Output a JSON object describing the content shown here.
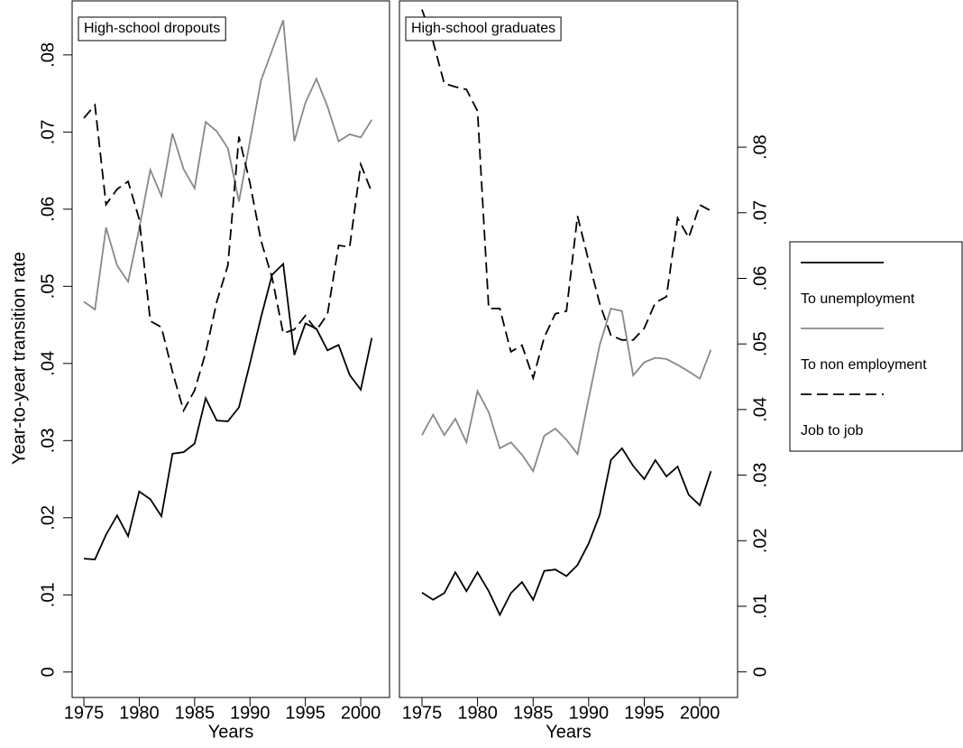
{
  "chart_data": [
    {
      "type": "line",
      "title": "High-school dropouts",
      "x_label": "Years",
      "y_label": "Year-to-year transition rate",
      "y_axis_side": "left",
      "x": [
        1975,
        1976,
        1977,
        1978,
        1979,
        1980,
        1981,
        1982,
        1983,
        1984,
        1985,
        1986,
        1987,
        1988,
        1989,
        1990,
        1991,
        1992,
        1993,
        1994,
        1995,
        1996,
        1997,
        1998,
        1999,
        2000,
        2001
      ],
      "xlim": [
        1973.94,
        2002.6
      ],
      "xticks": [
        1975,
        1980,
        1985,
        1990,
        1995,
        2000
      ],
      "ylim": [
        -0.0033,
        0.087
      ],
      "yticks": [
        0,
        {
          "value": 0.01,
          "label": ".01"
        },
        {
          "value": 0.02,
          "label": ".02"
        },
        {
          "value": 0.03,
          "label": ".03"
        },
        {
          "value": 0.04,
          "label": ".04"
        },
        {
          "value": 0.05,
          "label": ".05"
        },
        {
          "value": 0.06,
          "label": ".06"
        },
        {
          "value": 0.07,
          "label": ".07"
        },
        {
          "value": 0.08,
          "label": ".08"
        }
      ],
      "series": [
        {
          "name": "To unemployment",
          "color": "#000000",
          "dash": "solid",
          "values": [
            0.0147,
            0.0146,
            0.0178,
            0.0203,
            0.0176,
            0.0234,
            0.0224,
            0.0202,
            0.0283,
            0.0285,
            0.0296,
            0.0355,
            0.0326,
            0.0325,
            0.0343,
            0.04,
            0.046,
            0.0515,
            0.0529,
            0.0411,
            0.0452,
            0.0445,
            0.0417,
            0.0424,
            0.0385,
            0.0366,
            0.0433
          ]
        },
        {
          "name": "To non employment",
          "color": "#888888",
          "dash": "solid",
          "values": [
            0.048,
            0.047,
            0.0576,
            0.0527,
            0.0506,
            0.0575,
            0.0651,
            0.0617,
            0.0698,
            0.0652,
            0.0627,
            0.0713,
            0.0701,
            0.0679,
            0.061,
            0.0688,
            0.0767,
            0.0806,
            0.0845,
            0.0688,
            0.0738,
            0.0769,
            0.0733,
            0.0688,
            0.0697,
            0.0693,
            0.0716
          ]
        },
        {
          "name": "Job to job",
          "color": "#000000",
          "dash": "dashed",
          "values": [
            0.0718,
            0.0735,
            0.0606,
            0.0626,
            0.0636,
            0.0587,
            0.0455,
            0.0447,
            0.0389,
            0.0339,
            0.0365,
            0.0414,
            0.048,
            0.0527,
            0.0694,
            0.0634,
            0.0559,
            0.0511,
            0.0439,
            0.0444,
            0.0462,
            0.0443,
            0.0464,
            0.0553,
            0.0551,
            0.0658,
            0.0622
          ]
        }
      ]
    },
    {
      "type": "line",
      "title": "High-school graduates",
      "x_label": "Years",
      "y_axis_side": "right",
      "x": [
        1975,
        1976,
        1977,
        1978,
        1979,
        1980,
        1981,
        1982,
        1983,
        1984,
        1985,
        1986,
        1987,
        1988,
        1989,
        1990,
        1991,
        1992,
        1993,
        1994,
        1995,
        1996,
        1997,
        1998,
        1999,
        2000,
        2001
      ],
      "xlim": [
        1972.97,
        2003.4
      ],
      "xticks": [
        1975,
        1980,
        1985,
        1990,
        1995,
        2000
      ],
      "ylim": [
        -0.0039,
        0.1023
      ],
      "yticks": [
        0,
        {
          "value": 0.01,
          "label": ".01"
        },
        {
          "value": 0.02,
          "label": ".02"
        },
        {
          "value": 0.03,
          "label": ".03"
        },
        {
          "value": 0.04,
          "label": ".04"
        },
        {
          "value": 0.05,
          "label": ".05"
        },
        {
          "value": 0.06,
          "label": ".06"
        },
        {
          "value": 0.07,
          "label": ".07"
        },
        {
          "value": 0.08,
          "label": ".08"
        }
      ],
      "series": [
        {
          "color": "#000000",
          "dash": "solid",
          "values": [
            0.0121,
            0.011,
            0.012,
            0.0152,
            0.0123,
            0.0152,
            0.0123,
            0.0087,
            0.012,
            0.0137,
            0.011,
            0.0154,
            0.0156,
            0.0146,
            0.0163,
            0.0196,
            0.024,
            0.0323,
            0.0341,
            0.0314,
            0.0294,
            0.0323,
            0.0298,
            0.0313,
            0.027,
            0.0254,
            0.0306
          ]
        },
        {
          "color": "#888888",
          "dash": "solid",
          "values": [
            0.0361,
            0.0392,
            0.0361,
            0.0386,
            0.035,
            0.0428,
            0.0396,
            0.0341,
            0.035,
            0.0331,
            0.0306,
            0.036,
            0.0371,
            0.0354,
            0.0332,
            0.0417,
            0.0499,
            0.0554,
            0.055,
            0.0452,
            0.0472,
            0.0479,
            0.0477,
            0.0468,
            0.0458,
            0.0447,
            0.0491
          ]
        },
        {
          "color": "#000000",
          "dash": "dashed",
          "values": [
            0.101,
            0.0961,
            0.0897,
            0.0892,
            0.0888,
            0.0855,
            0.0554,
            0.0554,
            0.0488,
            0.0498,
            0.0448,
            0.051,
            0.0546,
            0.055,
            0.0695,
            0.0626,
            0.0561,
            0.0513,
            0.0506,
            0.0506,
            0.0524,
            0.0563,
            0.0572,
            0.0692,
            0.0662,
            0.0712,
            0.0703
          ]
        }
      ]
    }
  ]
}
